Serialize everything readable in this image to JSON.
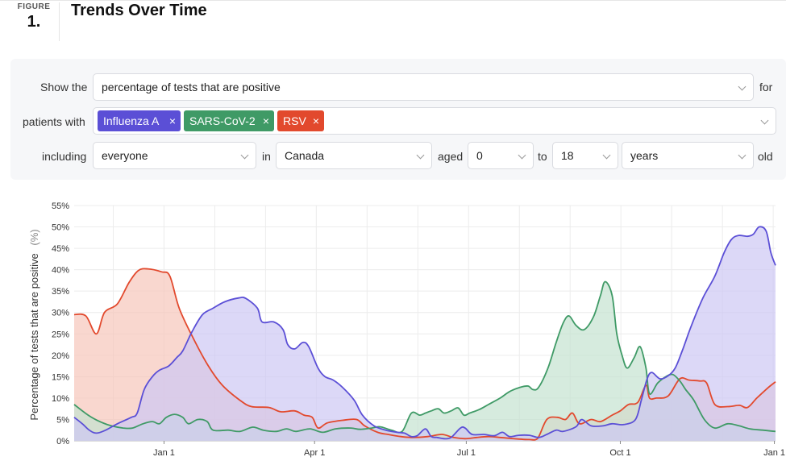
{
  "figure": {
    "word": "FIGURE",
    "number": "1.",
    "title": "Trends Over Time"
  },
  "controls": {
    "show_the": "Show the",
    "metric": "percentage of tests that are positive",
    "for": "for",
    "patients_with": "patients with",
    "chips": [
      {
        "label": "Influenza A",
        "color": "#5b4fd6"
      },
      {
        "label": "SARS-CoV-2",
        "color": "#3f9a66"
      },
      {
        "label": "RSV",
        "color": "#e2492d"
      }
    ],
    "chip_remove": "×",
    "including": "including",
    "population": "everyone",
    "in": "in",
    "region": "Canada",
    "aged": "aged",
    "age_min": "0",
    "to": "to",
    "age_max": "18",
    "unit": "years",
    "old": "old"
  },
  "chart_data": {
    "type": "area",
    "ylabel": "Percentage of tests that are positive",
    "ylabel_unit": "(%)",
    "ylim": [
      0,
      55
    ],
    "yticks": [
      0,
      5,
      10,
      15,
      20,
      25,
      30,
      35,
      40,
      45,
      50,
      55
    ],
    "ytick_labels": [
      "0%",
      "5%",
      "10%",
      "15%",
      "20%",
      "25%",
      "30%",
      "35%",
      "40%",
      "45%",
      "50%",
      "55%"
    ],
    "xticks": [
      {
        "label": "Jan 1",
        "x": 16
      },
      {
        "label": "Apr 1",
        "x": 28.9
      },
      {
        "label": "Jul 1",
        "x": 41.9
      },
      {
        "label": "Oct 1",
        "x": 55.1
      },
      {
        "label": "Jan 1",
        "x": 68.3
      }
    ],
    "xlim": [
      8.3,
      68.4
    ],
    "grid": true,
    "series": [
      {
        "name": "RSV",
        "color": "#e2492d",
        "fill": "#f7c6bb",
        "points": [
          [
            8.3,
            29.5
          ],
          [
            9.3,
            29.2
          ],
          [
            10.2,
            25
          ],
          [
            10.9,
            30
          ],
          [
            12,
            32
          ],
          [
            13,
            37
          ],
          [
            13.8,
            39.8
          ],
          [
            14.6,
            40.2
          ],
          [
            15.8,
            39.5
          ],
          [
            16.5,
            38.5
          ],
          [
            17.3,
            31
          ],
          [
            18.5,
            24
          ],
          [
            19.8,
            17.5
          ],
          [
            21,
            13
          ],
          [
            22.5,
            9.5
          ],
          [
            23.5,
            8
          ],
          [
            25,
            7.8
          ],
          [
            26,
            6.8
          ],
          [
            27.2,
            7
          ],
          [
            28,
            6
          ],
          [
            28.7,
            5.5
          ],
          [
            29.2,
            3
          ],
          [
            30,
            4.2
          ],
          [
            31.3,
            4.8
          ],
          [
            32.5,
            5
          ],
          [
            33.2,
            3.5
          ],
          [
            34.3,
            2
          ],
          [
            35.2,
            1.5
          ],
          [
            36.3,
            1
          ],
          [
            37.3,
            0.8
          ],
          [
            38.6,
            1
          ],
          [
            39.8,
            1.5
          ],
          [
            40.8,
            0.8
          ],
          [
            41.8,
            0.5
          ],
          [
            42.8,
            0.8
          ],
          [
            43.8,
            1
          ],
          [
            44.8,
            0.8
          ],
          [
            46,
            0.5
          ],
          [
            47.3,
            0.3
          ],
          [
            48,
            0.5
          ],
          [
            48.8,
            5
          ],
          [
            49.7,
            5.5
          ],
          [
            50.4,
            5
          ],
          [
            51,
            6.5
          ],
          [
            51.6,
            4
          ],
          [
            52.6,
            5
          ],
          [
            53.4,
            4.5
          ],
          [
            54.4,
            6
          ],
          [
            55.1,
            7
          ],
          [
            55.8,
            8.5
          ],
          [
            56.6,
            9
          ],
          [
            57.3,
            13
          ],
          [
            57.6,
            10
          ],
          [
            58.2,
            10
          ],
          [
            59.2,
            10.5
          ],
          [
            60.2,
            14.5
          ],
          [
            61,
            14.2
          ],
          [
            61.9,
            14
          ],
          [
            62.5,
            13.5
          ],
          [
            63.2,
            8.5
          ],
          [
            64.3,
            8
          ],
          [
            65.3,
            8.3
          ],
          [
            66,
            7.8
          ],
          [
            66.8,
            10
          ],
          [
            67.8,
            12.5
          ],
          [
            68.4,
            13.8
          ]
        ]
      },
      {
        "name": "SARS-CoV-2",
        "color": "#3f9a66",
        "fill": "#c5e3d0",
        "points": [
          [
            8.3,
            8.5
          ],
          [
            9.5,
            6
          ],
          [
            10.5,
            4.5
          ],
          [
            11.5,
            3.5
          ],
          [
            12.5,
            3
          ],
          [
            13.3,
            3
          ],
          [
            14.2,
            4
          ],
          [
            15,
            4.5
          ],
          [
            15.6,
            4
          ],
          [
            16.2,
            5.5
          ],
          [
            16.9,
            6.2
          ],
          [
            17.6,
            5.5
          ],
          [
            18.1,
            4
          ],
          [
            18.9,
            5
          ],
          [
            19.7,
            4.5
          ],
          [
            20.2,
            2.5
          ],
          [
            21.5,
            2.5
          ],
          [
            22.5,
            2.2
          ],
          [
            23.6,
            3.2
          ],
          [
            24.5,
            2.5
          ],
          [
            25.6,
            2.2
          ],
          [
            26.5,
            2.8
          ],
          [
            27.3,
            2.2
          ],
          [
            28.5,
            2.8
          ],
          [
            29.6,
            2
          ],
          [
            30.7,
            2.8
          ],
          [
            32,
            3
          ],
          [
            32.8,
            2.7
          ],
          [
            33.8,
            3
          ],
          [
            34.5,
            3.3
          ],
          [
            35.5,
            2.5
          ],
          [
            36.4,
            2.2
          ],
          [
            37.2,
            6.5
          ],
          [
            37.9,
            6
          ],
          [
            38.4,
            6.5
          ],
          [
            38.9,
            7
          ],
          [
            39.5,
            7.5
          ],
          [
            40,
            6.5
          ],
          [
            40.6,
            7
          ],
          [
            41.2,
            7.7
          ],
          [
            41.7,
            6
          ],
          [
            42.2,
            6.5
          ],
          [
            43,
            7.3
          ],
          [
            43.8,
            8.5
          ],
          [
            44.8,
            10
          ],
          [
            45.6,
            11.5
          ],
          [
            46.5,
            12.5
          ],
          [
            47.2,
            12.8
          ],
          [
            47.6,
            12
          ],
          [
            48.1,
            12.5
          ],
          [
            48.9,
            17
          ],
          [
            49.6,
            23
          ],
          [
            50.2,
            27.5
          ],
          [
            50.7,
            29.2
          ],
          [
            51.3,
            27
          ],
          [
            52,
            26
          ],
          [
            52.8,
            29
          ],
          [
            53.4,
            34
          ],
          [
            53.8,
            37.2
          ],
          [
            54.4,
            34
          ],
          [
            54.8,
            25
          ],
          [
            55.3,
            19.5
          ],
          [
            55.7,
            17
          ],
          [
            56.3,
            19.5
          ],
          [
            56.8,
            22
          ],
          [
            57.3,
            17
          ],
          [
            57.6,
            11
          ],
          [
            58.3,
            13.5
          ],
          [
            59,
            15
          ],
          [
            59.6,
            15.5
          ],
          [
            60.2,
            14
          ],
          [
            60.7,
            12
          ],
          [
            61.4,
            9.5
          ],
          [
            62.3,
            5
          ],
          [
            63.2,
            3
          ],
          [
            64.3,
            4
          ],
          [
            65.3,
            3.5
          ],
          [
            66.2,
            2.8
          ],
          [
            67.3,
            2.5
          ],
          [
            68.4,
            2.2
          ]
        ]
      },
      {
        "name": "Influenza A",
        "color": "#5b4fd6",
        "fill": "#cdc8f4",
        "points": [
          [
            8.3,
            5.5
          ],
          [
            9,
            4
          ],
          [
            9.6,
            2.5
          ],
          [
            10.2,
            1.8
          ],
          [
            11,
            2.5
          ],
          [
            12,
            4
          ],
          [
            13.2,
            5.5
          ],
          [
            13.7,
            6.5
          ],
          [
            14.3,
            12
          ],
          [
            15,
            15
          ],
          [
            15.6,
            16.5
          ],
          [
            16.4,
            17.5
          ],
          [
            17.1,
            19.5
          ],
          [
            17.6,
            21
          ],
          [
            18.4,
            25.5
          ],
          [
            19.3,
            29.5
          ],
          [
            20.2,
            31
          ],
          [
            21.2,
            32.5
          ],
          [
            22.4,
            33.4
          ],
          [
            23,
            33.3
          ],
          [
            24,
            31
          ],
          [
            24.4,
            27.8
          ],
          [
            25.4,
            27.8
          ],
          [
            26.2,
            26
          ],
          [
            26.6,
            22.5
          ],
          [
            27.2,
            21.5
          ],
          [
            27.9,
            23
          ],
          [
            28.4,
            22
          ],
          [
            29.2,
            17
          ],
          [
            29.8,
            15
          ],
          [
            30.5,
            14.2
          ],
          [
            31.3,
            12.5
          ],
          [
            32.3,
            9.5
          ],
          [
            33,
            6
          ],
          [
            34,
            3.5
          ],
          [
            35,
            2.5
          ],
          [
            36,
            2
          ],
          [
            36.6,
            1.8
          ],
          [
            37.2,
            1
          ],
          [
            37.7,
            1.2
          ],
          [
            38.4,
            2.8
          ],
          [
            38.9,
            1
          ],
          [
            39.4,
            0.8
          ],
          [
            40,
            0.5
          ],
          [
            40.6,
            0.8
          ],
          [
            41.4,
            3
          ],
          [
            41.8,
            3
          ],
          [
            42.4,
            1.5
          ],
          [
            43.4,
            1.5
          ],
          [
            44.3,
            1.2
          ],
          [
            45,
            2
          ],
          [
            45.6,
            1
          ],
          [
            46.4,
            1.3
          ],
          [
            47.3,
            1.3
          ],
          [
            48.1,
            0.8
          ],
          [
            48.8,
            1.5
          ],
          [
            49.6,
            2.5
          ],
          [
            50.2,
            2.2
          ],
          [
            51.3,
            3.3
          ],
          [
            51.8,
            5
          ],
          [
            52.6,
            3.5
          ],
          [
            53.6,
            3.5
          ],
          [
            54.4,
            4
          ],
          [
            55.4,
            3.8
          ],
          [
            56.4,
            5
          ],
          [
            56.9,
            9.5
          ],
          [
            57.4,
            14.5
          ],
          [
            57.8,
            16
          ],
          [
            58.5,
            14.5
          ],
          [
            59.2,
            15.2
          ],
          [
            59.8,
            17
          ],
          [
            60.4,
            21
          ],
          [
            61.2,
            27
          ],
          [
            62.2,
            33.5
          ],
          [
            63.2,
            38.5
          ],
          [
            64,
            44
          ],
          [
            64.6,
            47
          ],
          [
            65.2,
            48
          ],
          [
            66,
            47.8
          ],
          [
            66.5,
            48.3
          ],
          [
            67,
            50
          ],
          [
            67.6,
            49
          ],
          [
            68,
            44
          ],
          [
            68.4,
            41
          ]
        ]
      }
    ]
  }
}
